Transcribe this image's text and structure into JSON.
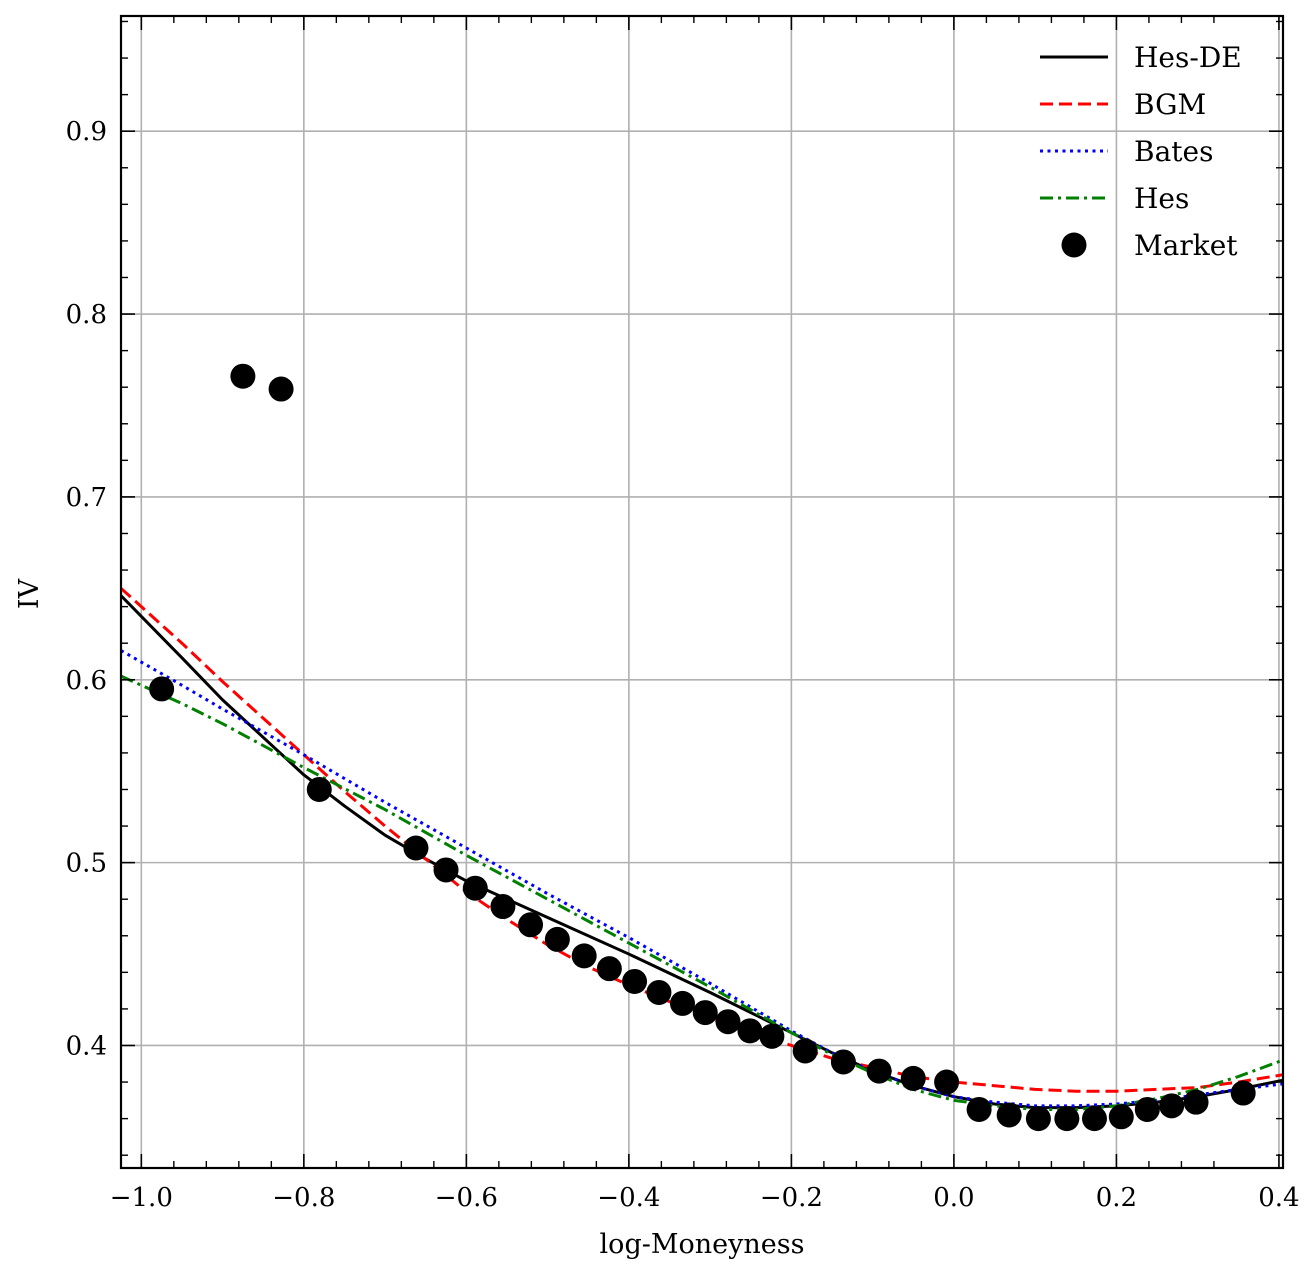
{
  "chart_data": {
    "type": "line",
    "xlabel": "log-Moneyness",
    "ylabel": "IV",
    "xlim": [
      -1.025,
      0.405
    ],
    "ylim": [
      0.333,
      0.963
    ],
    "grid": true,
    "legend_position": "top-right",
    "x_ticks": [
      -1.0,
      -0.8,
      -0.6,
      -0.4,
      -0.2,
      0.0,
      0.2,
      0.4
    ],
    "x_tick_labels": [
      "−1.0",
      "−0.8",
      "−0.6",
      "−0.4",
      "−0.2",
      "0.0",
      "0.2",
      "0.4"
    ],
    "y_ticks": [
      0.4,
      0.5,
      0.6,
      0.7,
      0.8,
      0.9
    ],
    "y_tick_labels": [
      "0.4",
      "0.5",
      "0.6",
      "0.7",
      "0.8",
      "0.9"
    ],
    "series": [
      {
        "name": "Hes-DE",
        "kind": "line",
        "color": "#000000",
        "dash": "solid",
        "x": [
          -1.025,
          -0.95,
          -0.9,
          -0.8,
          -0.75,
          -0.7,
          -0.65,
          -0.6,
          -0.5,
          -0.4,
          -0.3,
          -0.2,
          -0.15,
          -0.1,
          -0.05,
          0.0,
          0.05,
          0.1,
          0.15,
          0.2,
          0.25,
          0.3,
          0.35,
          0.405
        ],
        "y": [
          0.646,
          0.612,
          0.589,
          0.548,
          0.531,
          0.515,
          0.502,
          0.49,
          0.47,
          0.45,
          0.429,
          0.407,
          0.396,
          0.386,
          0.378,
          0.372,
          0.368,
          0.366,
          0.366,
          0.367,
          0.369,
          0.372,
          0.376,
          0.381
        ]
      },
      {
        "name": "BGM",
        "kind": "line",
        "color": "#ff0000",
        "dash": "dashed",
        "x": [
          -1.025,
          -0.95,
          -0.9,
          -0.8,
          -0.75,
          -0.7,
          -0.65,
          -0.6,
          -0.55,
          -0.5,
          -0.45,
          -0.4,
          -0.35,
          -0.3,
          -0.25,
          -0.2,
          -0.15,
          -0.1,
          -0.05,
          0.0,
          0.05,
          0.1,
          0.15,
          0.2,
          0.25,
          0.3,
          0.35,
          0.405
        ],
        "y": [
          0.65,
          0.62,
          0.599,
          0.559,
          0.539,
          0.52,
          0.502,
          0.484,
          0.469,
          0.455,
          0.443,
          0.433,
          0.424,
          0.415,
          0.407,
          0.4,
          0.393,
          0.388,
          0.383,
          0.38,
          0.378,
          0.376,
          0.375,
          0.375,
          0.376,
          0.377,
          0.38,
          0.384
        ]
      },
      {
        "name": "Bates",
        "kind": "line",
        "color": "#0000ff",
        "dash": "dotted",
        "x": [
          -1.025,
          -0.95,
          -0.9,
          -0.8,
          -0.7,
          -0.6,
          -0.5,
          -0.4,
          -0.3,
          -0.2,
          -0.15,
          -0.1,
          -0.05,
          0.0,
          0.05,
          0.1,
          0.15,
          0.2,
          0.25,
          0.3,
          0.35,
          0.405
        ],
        "y": [
          0.616,
          0.597,
          0.584,
          0.559,
          0.533,
          0.508,
          0.483,
          0.459,
          0.434,
          0.408,
          0.396,
          0.386,
          0.378,
          0.372,
          0.369,
          0.367,
          0.367,
          0.368,
          0.37,
          0.373,
          0.376,
          0.379
        ]
      },
      {
        "name": "Hes",
        "kind": "line",
        "color": "#008000",
        "dash": "dashdot",
        "x": [
          -1.025,
          -0.95,
          -0.9,
          -0.8,
          -0.7,
          -0.6,
          -0.5,
          -0.4,
          -0.3,
          -0.2,
          -0.15,
          -0.1,
          -0.05,
          0.0,
          0.05,
          0.1,
          0.15,
          0.2,
          0.25,
          0.3,
          0.35,
          0.405
        ],
        "y": [
          0.602,
          0.587,
          0.576,
          0.552,
          0.529,
          0.504,
          0.48,
          0.456,
          0.432,
          0.407,
          0.395,
          0.385,
          0.376,
          0.37,
          0.367,
          0.365,
          0.365,
          0.367,
          0.371,
          0.376,
          0.383,
          0.392
        ]
      },
      {
        "name": "Market",
        "kind": "scatter",
        "color": "#000000",
        "x": [
          -0.975,
          -0.875,
          -0.828,
          -0.781,
          -0.662,
          -0.625,
          -0.589,
          -0.555,
          -0.521,
          -0.488,
          -0.455,
          -0.424,
          -0.393,
          -0.363,
          -0.334,
          -0.306,
          -0.278,
          -0.251,
          -0.224,
          -0.183,
          -0.136,
          -0.092,
          -0.05,
          -0.009,
          0.031,
          0.068,
          0.104,
          0.139,
          0.173,
          0.206,
          0.238,
          0.268,
          0.298,
          0.356
        ],
        "y": [
          0.595,
          0.766,
          0.759,
          0.54,
          0.508,
          0.496,
          0.486,
          0.476,
          0.466,
          0.458,
          0.449,
          0.442,
          0.435,
          0.429,
          0.423,
          0.418,
          0.413,
          0.408,
          0.405,
          0.397,
          0.391,
          0.386,
          0.382,
          0.38,
          0.365,
          0.362,
          0.36,
          0.36,
          0.36,
          0.361,
          0.365,
          0.367,
          0.369,
          0.374
        ]
      }
    ]
  }
}
